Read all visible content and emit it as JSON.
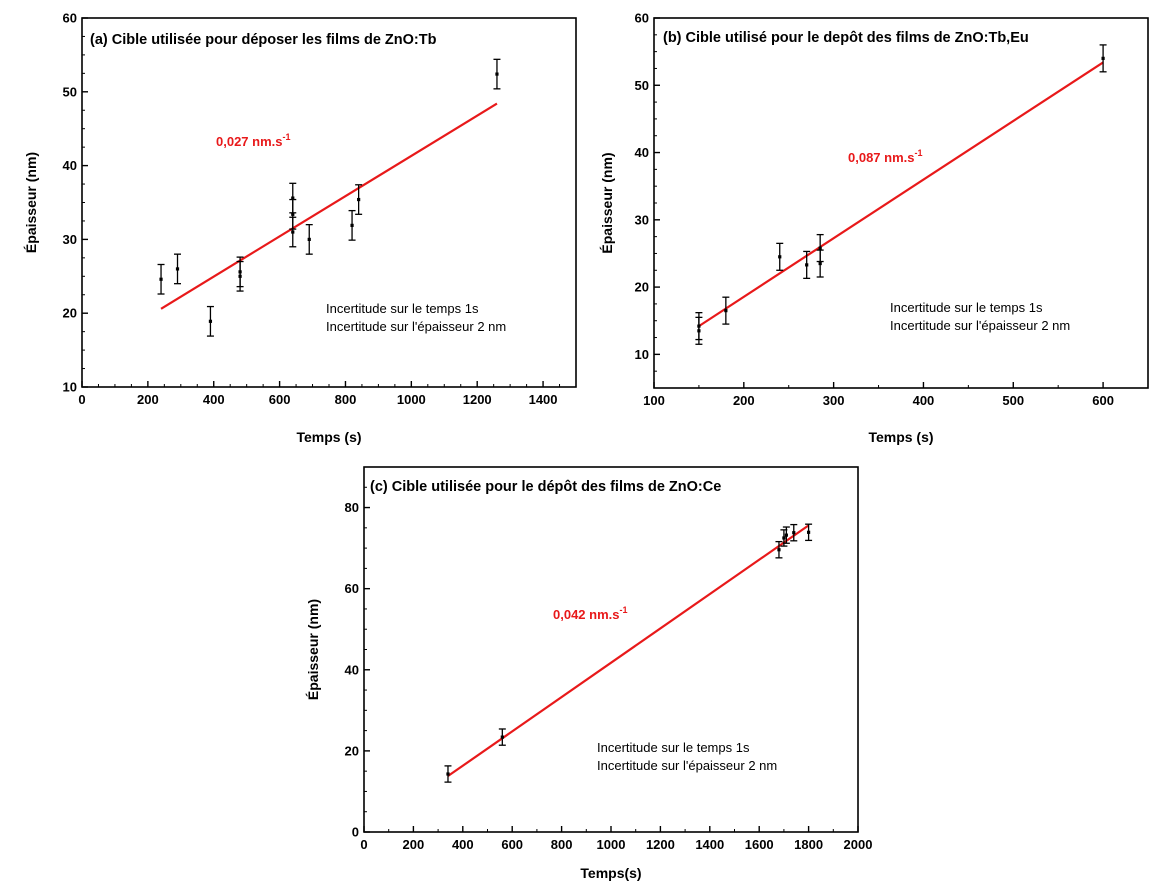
{
  "chart_data": [
    {
      "type": "scatter",
      "panel": "a",
      "title": "(a) Cible utilisée pour déposer les films de ZnO:Tb",
      "xlabel": "Temps (s)",
      "ylabel": "Épaisseur (nm)",
      "xlim": [
        0,
        1500
      ],
      "ylim": [
        10,
        60
      ],
      "xticks": [
        "0",
        "200",
        "400",
        "600",
        "800",
        "1000",
        "1200",
        "1400"
      ],
      "yticks": [
        "10",
        "20",
        "30",
        "40",
        "50",
        "60"
      ],
      "x": [
        240,
        290,
        390,
        480,
        480,
        640,
        640,
        640,
        690,
        820,
        840,
        1260
      ],
      "y": [
        24.6,
        26,
        18.9,
        25,
        25.6,
        31,
        33.4,
        35.6,
        30,
        31.9,
        35.4,
        52.4
      ],
      "error_y": 2,
      "fit": {
        "x": [
          240,
          1260
        ],
        "y": [
          20.6,
          48.4
        ],
        "color": "#e8191a"
      },
      "slope_label": {
        "base": "0,027 nm.s",
        "sup": "-1"
      },
      "notes": [
        "Incertitude sur le temps 1s",
        "Incertitude sur l'épaisseur 2 nm"
      ]
    },
    {
      "type": "scatter",
      "panel": "b",
      "title": "(b) Cible utilisé pour le depôt des films de ZnO:Tb,Eu",
      "xlabel": "Temps (s)",
      "ylabel": "Épaisseur (nm)",
      "xlim": [
        100,
        650
      ],
      "ylim": [
        5,
        60
      ],
      "xticks": [
        "100",
        "200",
        "300",
        "400",
        "500",
        "600"
      ],
      "yticks": [
        "10",
        "20",
        "30",
        "40",
        "50",
        "60"
      ],
      "x": [
        150,
        150,
        180,
        240,
        270,
        285,
        285,
        600
      ],
      "y": [
        13.5,
        14.2,
        16.5,
        24.5,
        23.3,
        23.5,
        25.8,
        54
      ],
      "error_y": 2,
      "fit": {
        "x": [
          150,
          600
        ],
        "y": [
          14.2,
          53.4
        ],
        "color": "#e8191a"
      },
      "slope_label": {
        "base": "0,087 nm.s",
        "sup": "-1"
      },
      "notes": [
        "Incertitude sur le temps 1s",
        "Incertitude sur l'épaisseur 2 nm"
      ]
    },
    {
      "type": "scatter",
      "panel": "c",
      "title": "(c) Cible utilisée pour le dépôt des films de ZnO:Ce",
      "xlabel": "Temps(s)",
      "ylabel": "Épaisseur (nm)",
      "xlim": [
        0,
        2000
      ],
      "ylim": [
        0,
        90
      ],
      "xticks": [
        "0",
        "200",
        "400",
        "600",
        "800",
        "1000",
        "1200",
        "1400",
        "1600",
        "1800",
        "2000"
      ],
      "yticks": [
        "0",
        "20",
        "40",
        "60",
        "80"
      ],
      "x": [
        340,
        560,
        1680,
        1700,
        1710,
        1740,
        1800
      ],
      "y": [
        14.3,
        23.4,
        69.6,
        72.5,
        73.2,
        73.8,
        73.9
      ],
      "error_y": 2,
      "fit": {
        "x": [
          340,
          1800
        ],
        "y": [
          13.8,
          75.6
        ],
        "color": "#e8191a"
      },
      "slope_label": {
        "base": "0,042 nm.s",
        "sup": "-1"
      },
      "notes": [
        "Incertitude sur le temps 1s",
        "Incertitude sur l'épaisseur 2 nm"
      ]
    }
  ]
}
